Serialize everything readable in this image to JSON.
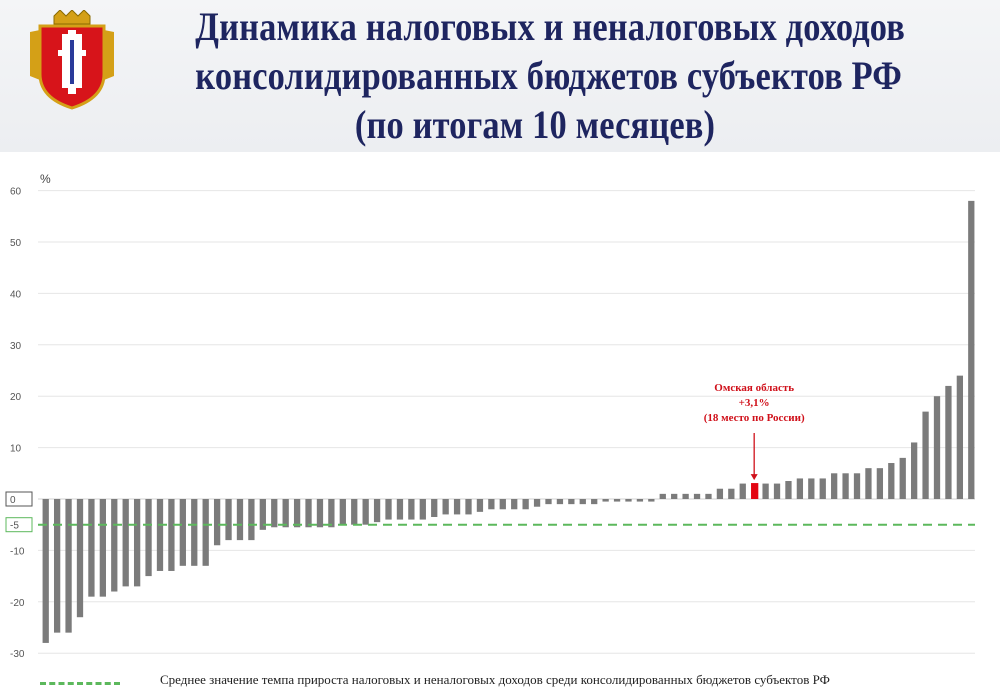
{
  "header": {
    "title_lines": [
      "Динамика налоговых и неналоговых доходов",
      "консолидированных бюджетов субъектов РФ",
      "(по итогам 10 месяцев)"
    ],
    "crest_icon": "omsk-region-coat-of-arms-icon"
  },
  "chart_data": {
    "type": "bar",
    "ylabel": "%",
    "ylim": [
      -30,
      60
    ],
    "yticks": [
      60,
      50,
      40,
      30,
      20,
      10,
      0,
      -5,
      -10,
      -20,
      -30
    ],
    "grid": true,
    "colors": {
      "bar": "#7b7b7b",
      "highlight": "#e30613",
      "average": "#5cb85c",
      "annotation": "#d0101a"
    },
    "values": [
      -28,
      -26,
      -26,
      -23,
      -19,
      -19,
      -18,
      -17,
      -17,
      -15,
      -14,
      -14,
      -13,
      -13,
      -13,
      -9,
      -8,
      -8,
      -8,
      -6,
      -5.5,
      -5.5,
      -5.5,
      -5.5,
      -5.5,
      -5.5,
      -5,
      -5,
      -5,
      -4.5,
      -4,
      -4,
      -4,
      -4,
      -3.5,
      -3,
      -3,
      -3,
      -2.5,
      -2,
      -2,
      -2,
      -2,
      -1.5,
      -1,
      -1,
      -1,
      -1,
      -1,
      -0.5,
      -0.5,
      -0.5,
      -0.5,
      -0.5,
      1,
      1,
      1,
      1,
      1,
      2,
      2,
      3,
      3.1,
      3,
      3,
      3.5,
      4,
      4,
      4,
      5,
      5,
      5,
      6,
      6,
      7,
      8,
      11,
      17,
      20,
      22,
      24,
      58
    ],
    "highlight_index": 62,
    "highlight_value": 3.1,
    "average": -5,
    "annotation": [
      "Омская область",
      "+3,1%",
      "(18 место по России)"
    ],
    "legend": "Среднее значение темпа прироста налоговых и неналоговых доходов среди консолидированных бюджетов субъектов РФ"
  }
}
